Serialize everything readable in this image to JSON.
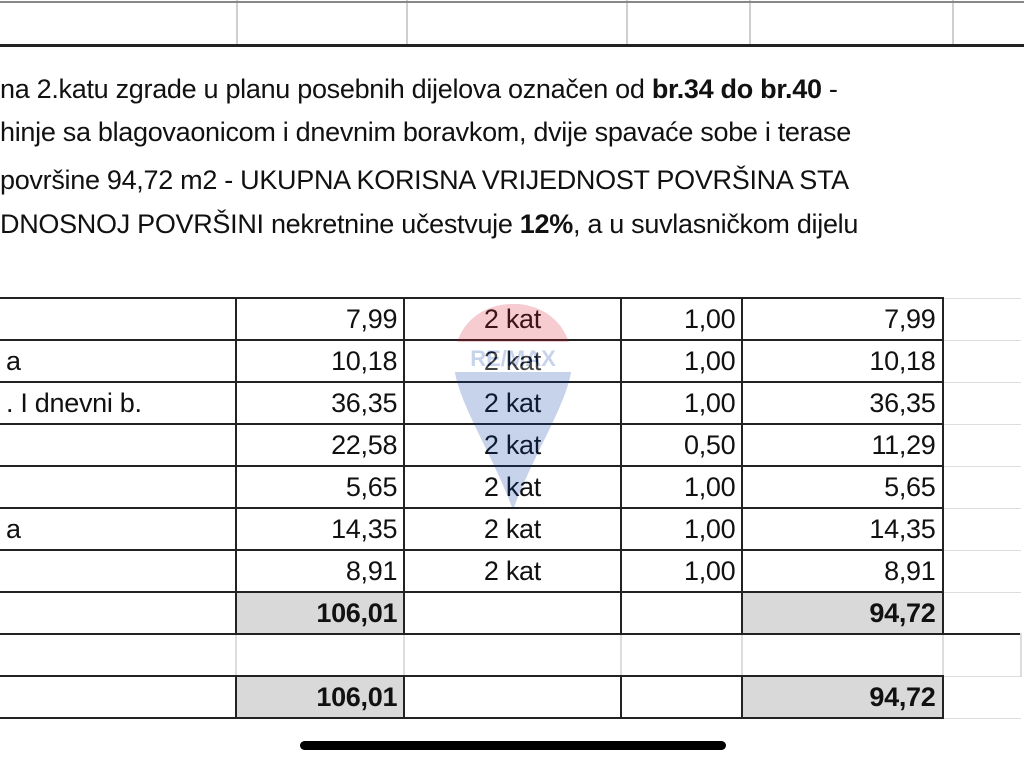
{
  "paragraph": {
    "line1_a": "na 2.katu zgrade u planu posebnih dijelova označen od ",
    "line1_b": "br.34 do br.40",
    "line1_c": " -",
    "line2": "hinje sa blagovaonicom i dnevnim boravkom, dvije spavaće sobe i terase",
    "line3": "površine 94,72 m2 - UKUPNA KORISNA VRIJEDNOST POVRŠINA STA",
    "line4_a": "DNOSNOJ POVRŠINI nekretnine učestvuje ",
    "line4_b": "12%",
    "line4_c": ", a u suvlasničkom dijelu"
  },
  "table": {
    "rows": [
      {
        "name": "",
        "area": "7,99",
        "floor": "2 kat",
        "coef": "1,00",
        "net": "7,99"
      },
      {
        "name": "a",
        "area": "10,18",
        "floor": "2 kat",
        "coef": "1,00",
        "net": "10,18"
      },
      {
        "name": ". I dnevni b.",
        "area": "36,35",
        "floor": "2 kat",
        "coef": "1,00",
        "net": "36,35"
      },
      {
        "name": "",
        "area": "22,58",
        "floor": "2 kat",
        "coef": "0,50",
        "net": "11,29"
      },
      {
        "name": "",
        "area": "5,65",
        "floor": "2 kat",
        "coef": "1,00",
        "net": "5,65"
      },
      {
        "name": "a",
        "area": "14,35",
        "floor": "2 kat",
        "coef": "1,00",
        "net": "14,35"
      },
      {
        "name": "",
        "area": "8,91",
        "floor": "2 kat",
        "coef": "1,00",
        "net": "8,91"
      }
    ],
    "subtotal": {
      "area": "106,01",
      "net": "94,72"
    },
    "total": {
      "area": "106,01",
      "net": "94,72"
    }
  },
  "watermark": "RE/MAX",
  "colors": {
    "total_fill": "#d9d9d9",
    "watermark_red": "#dc1c2e",
    "watermark_blue": "#003da5"
  }
}
